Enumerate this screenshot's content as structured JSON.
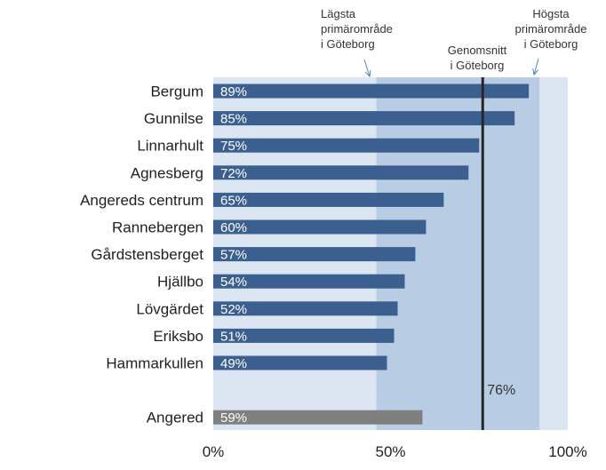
{
  "chart_data": {
    "type": "bar",
    "orientation": "horizontal",
    "categories": [
      "Bergum",
      "Gunnilse",
      "Linnarhult",
      "Agnesberg",
      "Angereds centrum",
      "Rannebergen",
      "Gårdstensberget",
      "Hjällbo",
      "Lövgärdet",
      "Eriksbo",
      "Hammarkullen",
      "",
      "Angered"
    ],
    "values": [
      89,
      85,
      75,
      72,
      65,
      60,
      57,
      54,
      52,
      51,
      49,
      null,
      59
    ],
    "value_labels": [
      "89%",
      "85%",
      "75%",
      "72%",
      "65%",
      "60%",
      "57%",
      "54%",
      "52%",
      "51%",
      "49%",
      "",
      "59%"
    ],
    "highlight_category": "Angered",
    "xlim": [
      0,
      100
    ],
    "x_ticks": [
      0,
      50,
      100
    ],
    "x_tick_labels": [
      "0%",
      "50%",
      "100%"
    ],
    "average": {
      "value": 76,
      "label": "76%",
      "annotation": [
        "Genomsnitt",
        "i  Göteborg"
      ]
    },
    "range_lowest": {
      "value": 46,
      "annotation": [
        "Lägsta",
        "primärområde",
        "i Göteborg"
      ]
    },
    "range_highest": {
      "value": 92,
      "annotation": [
        "Högsta",
        "primärområde",
        "i Göteborg"
      ]
    },
    "grid": false,
    "legend": "none"
  },
  "colors": {
    "bar": "#3b5f8f",
    "bar_highlight": "#7f7f7f",
    "background_band": "#dce6f2",
    "range_band": "#b8cce4",
    "average_line": "#262626",
    "arrow": "#4f81bd"
  }
}
